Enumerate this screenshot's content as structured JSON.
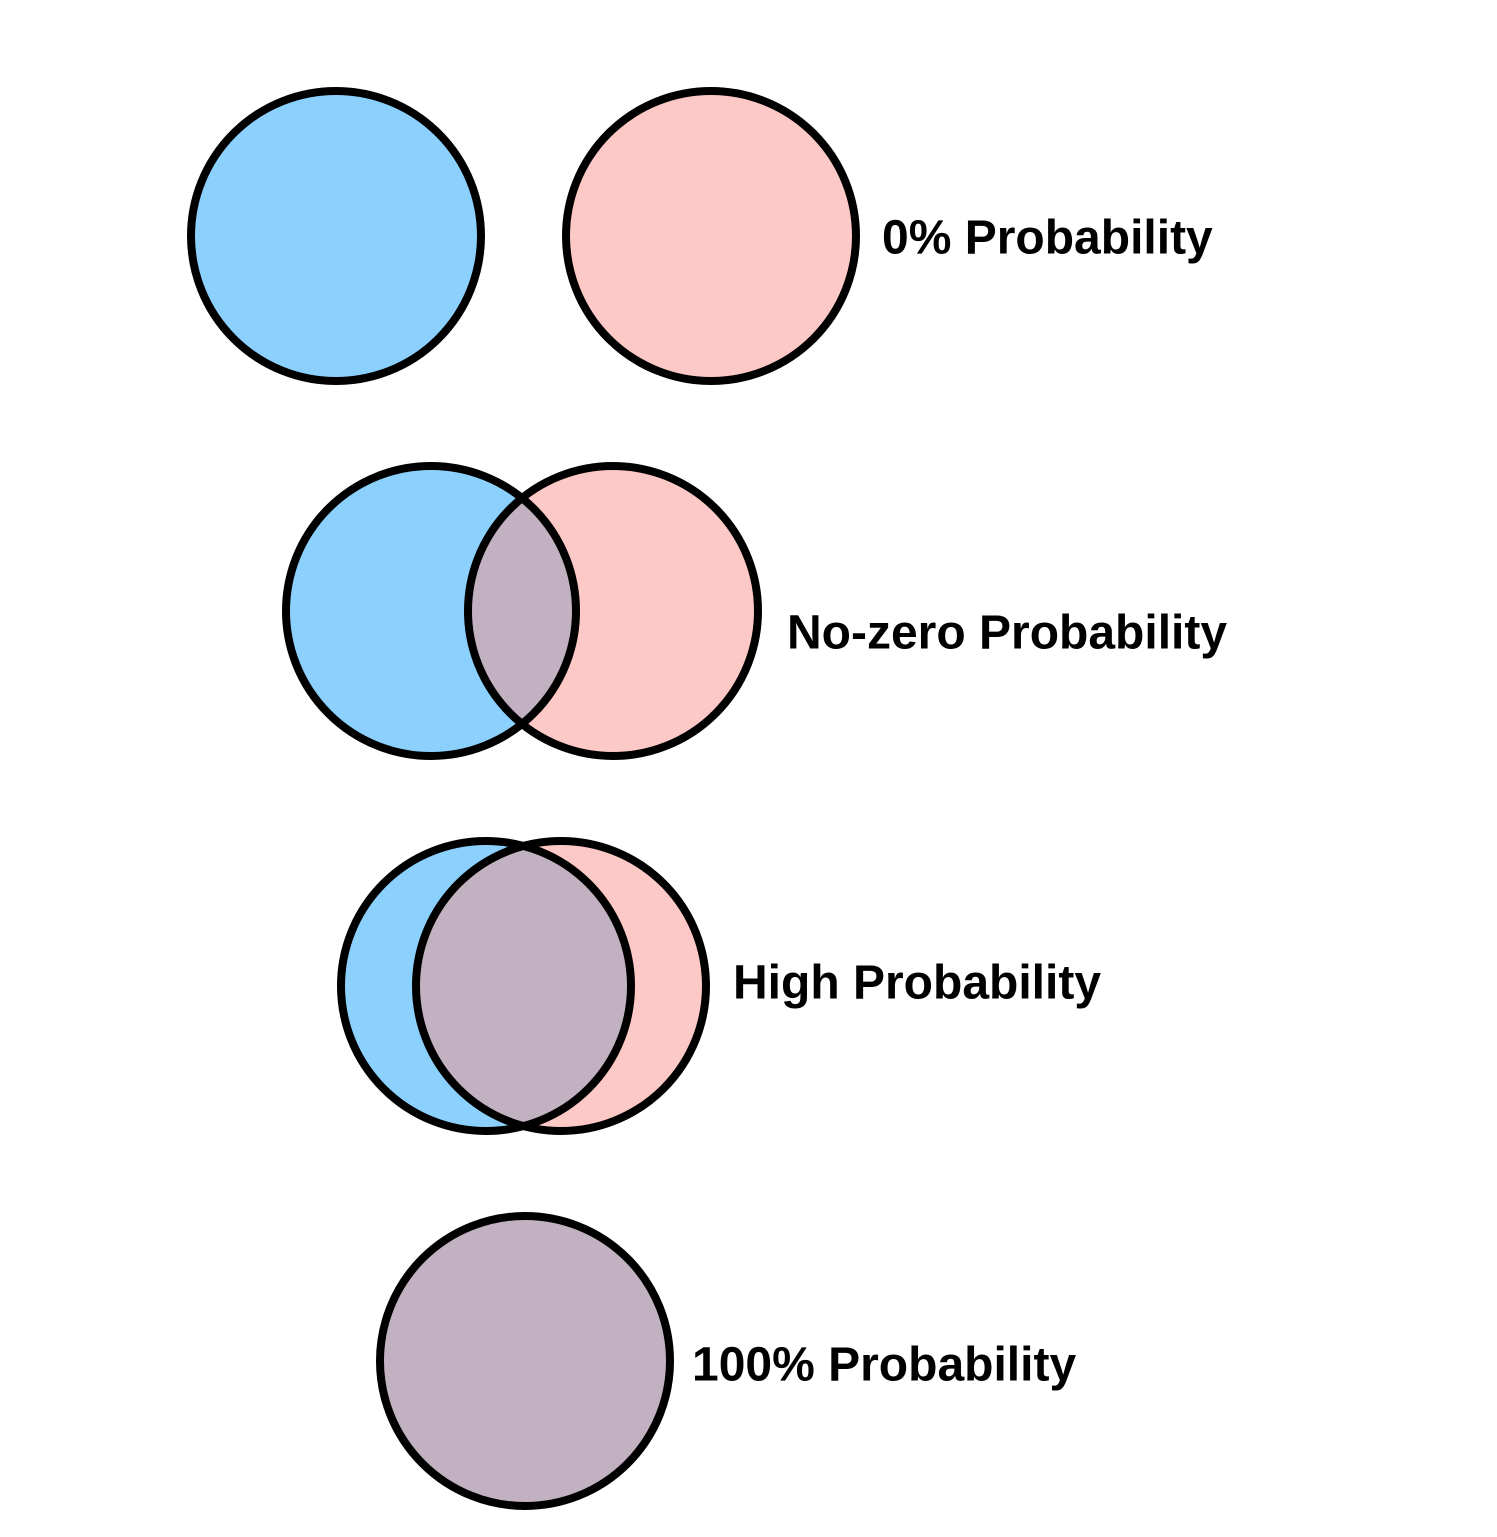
{
  "colors": {
    "set_a": "#8cd1fd",
    "set_b": "#fdc9c6",
    "overlap": "#c2b2c1",
    "outline": "#000000",
    "background": "#ffffff"
  },
  "rows": [
    {
      "label": "0% Probability",
      "overlap": "none"
    },
    {
      "label": "No-zero Probability",
      "overlap": "partial"
    },
    {
      "label": "High Probability",
      "overlap": "large"
    },
    {
      "label": "100% Probability",
      "overlap": "complete"
    }
  ]
}
